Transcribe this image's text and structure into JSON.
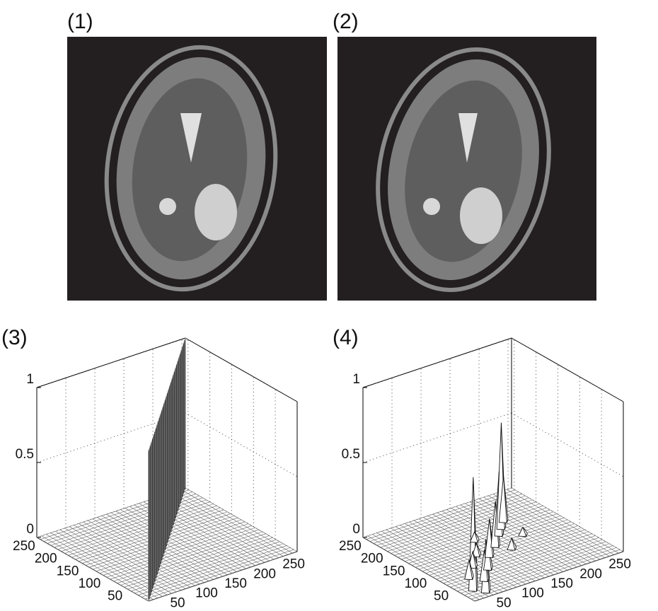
{
  "panels": [
    {
      "label": "(1)"
    },
    {
      "label": "(2)"
    },
    {
      "label": "(3)",
      "plot": {
        "zlim": [
          0,
          1
        ],
        "zticks": [
          0,
          0.5,
          1
        ],
        "xlim": [
          0,
          256
        ],
        "xticks": [
          50,
          100,
          150,
          200,
          250
        ],
        "ylim": [
          0,
          256
        ],
        "yticks": [
          50,
          100,
          150,
          200,
          250
        ]
      }
    },
    {
      "label": "(4)",
      "plot": {
        "zlim": [
          0,
          1
        ],
        "zticks": [
          0,
          0.5,
          1
        ],
        "xlim": [
          0,
          256
        ],
        "xticks": [
          50,
          100,
          150,
          200,
          250
        ],
        "ylim": [
          0,
          256
        ],
        "yticks": [
          50,
          100,
          150,
          200,
          250
        ]
      }
    }
  ]
}
